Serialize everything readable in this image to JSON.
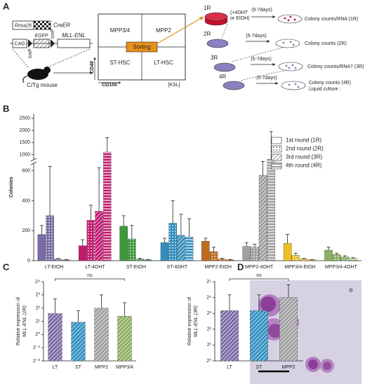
{
  "panel_labels": [
    "A",
    "B",
    "C",
    "D"
  ],
  "diagram": {
    "construct": {
      "promoter1": "Rosa26",
      "gene1": "CreER",
      "promoter2": "CAG",
      "lox1": "loxP",
      "reporter": "EGFP",
      "lox2": "loxP",
      "gene2": "MLL-ENL"
    },
    "mouse": "C/Tg mouse",
    "gates": [
      "MPP3/4",
      "MPP2",
      "ST-HSC",
      "LT-HSC"
    ],
    "gate_center": "Sorting",
    "y_axis": "CD48",
    "x_axis": "CD150",
    "gate_note": "[KSL]",
    "treatment": [
      "(+4OHT",
      "or EtOH)"
    ],
    "rounds": [
      {
        "label": "1R",
        "days": "(5-7days)",
        "result": "Colony counts/RNA (1R)"
      },
      {
        "label": "2R",
        "days": "(5-7days)",
        "result": "Colony counts (2R)"
      },
      {
        "label": "3R",
        "days": "(5-7days)",
        "result": "Colony counts/RNA† (3R)"
      },
      {
        "label": "4R",
        "days": "(5-7days)",
        "result": "Colony counts (4R)"
      }
    ],
    "extra": "Liquid culture :"
  },
  "chart_data": [
    {
      "type": "bar",
      "ylabel": "Colonies",
      "categories": [
        "LT-EtOH",
        "LT-4OHT",
        "ST-EtOH",
        "ST-4OHT",
        "MPP2-EtOH",
        "MPP2-4OHT",
        "MPP3/4-EtOH",
        "MPP3/4-4OHT"
      ],
      "category_colors": [
        "#7b6aa8",
        "#c5186f",
        "#3a9a3a",
        "#2f8fc0",
        "#c06a1a",
        "#a0a0a0",
        "#f0c020",
        "#8ab060"
      ],
      "series": [
        {
          "name": "1st round (1R)",
          "pattern": "none",
          "values": [
            175,
            100,
            230,
            120,
            130,
            95,
            115,
            70
          ],
          "errors": [
            60,
            40,
            70,
            30,
            20,
            25,
            60,
            20
          ]
        },
        {
          "name": "2nd round (2R)",
          "pattern": "dots",
          "values": [
            300,
            270,
            145,
            250,
            60,
            90,
            35,
            40
          ],
          "errors": [
            330,
            100,
            90,
            150,
            30,
            20,
            15,
            10
          ]
        },
        {
          "name": "3rd round (3R)",
          "pattern": "diagonal",
          "values": [
            10,
            330,
            10,
            170,
            10,
            570,
            10,
            25
          ],
          "errors": [
            5,
            290,
            5,
            140,
            5,
            150,
            5,
            8
          ]
        },
        {
          "name": "4th round (4R)",
          "pattern": "horizontal",
          "values": [
            5,
            1100,
            5,
            160,
            5,
            800,
            5,
            15
          ],
          "errors": [
            3,
            600,
            3,
            120,
            3,
            1150,
            3,
            5
          ]
        }
      ],
      "ylim": [
        0,
        2700
      ],
      "ybreak": [
        650,
        780
      ],
      "yticks": [
        0,
        200,
        400,
        600,
        1000,
        1500,
        2000,
        2500
      ],
      "legend": "right"
    },
    {
      "type": "bar",
      "ylabel": [
        "Relative expression of",
        "MLL-ENL (1R)"
      ],
      "categories": [
        "LT",
        "ST",
        "MPP2",
        "MPP3/4"
      ],
      "colors": [
        "#7b6aa8",
        "#2f8fc0",
        "#a0a0a0",
        "#8ab060"
      ],
      "patterns": [
        "diagonal",
        "diagonal",
        "diagonal",
        "diagonal"
      ],
      "values": [
        3,
        1.9,
        4,
        2.6
      ],
      "errors": [
        3.5,
        1.6,
        4,
        2.7
      ],
      "yscale": "log",
      "ylim": [
        0.25,
        16
      ],
      "yticks": [
        {
          "value": 0.25,
          "label": "2⁻²"
        },
        {
          "value": 0.5,
          "label": "2⁻¹"
        },
        {
          "value": 1,
          "label": "2⁰"
        },
        {
          "value": 2,
          "label": "2¹"
        },
        {
          "value": 4,
          "label": "2²"
        },
        {
          "value": 8,
          "label": "2³"
        },
        {
          "value": 16,
          "label": "2⁴"
        }
      ],
      "annotation": "ns"
    },
    {
      "type": "bar",
      "ylabel": [
        "Relative expression of",
        "MLL-ENL (3R)"
      ],
      "categories": [
        "LT",
        "ST",
        "MPP2"
      ],
      "colors": [
        "#7b6aa8",
        "#2f8fc0",
        "#a0a0a0"
      ],
      "patterns": [
        "diagonal",
        "diagonal",
        "diagonal"
      ],
      "values": [
        9,
        9,
        16
      ],
      "errors": [
        9,
        9,
        12
      ],
      "yscale": "log",
      "ylim": [
        1,
        32
      ],
      "yticks": [
        {
          "value": 1,
          "label": "2⁰"
        },
        {
          "value": 2,
          "label": "2¹"
        },
        {
          "value": 4,
          "label": "2²"
        },
        {
          "value": 8,
          "label": "2³"
        },
        {
          "value": 16,
          "label": "2⁴"
        },
        {
          "value": 32,
          "label": "2⁵"
        }
      ],
      "annotation": "ns"
    }
  ]
}
